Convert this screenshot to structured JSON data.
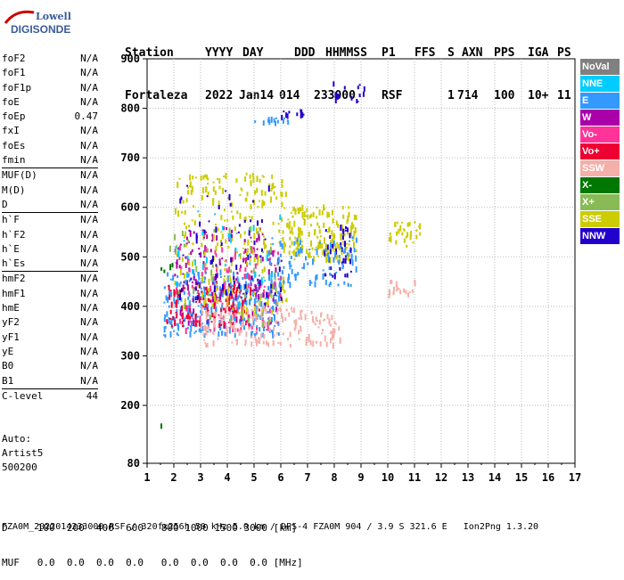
{
  "logo": {
    "line1": "Lowell",
    "line2": "DIGISONDE"
  },
  "header": {
    "labels": [
      "Station",
      "YYYY",
      "DAY",
      "DDD",
      "HHMMSS",
      "P1",
      "FFS",
      "S",
      "AXN",
      "PPS",
      "IGA",
      "PS"
    ],
    "values": [
      "Fortaleza",
      "2022",
      "Jan14",
      "014",
      "233000",
      "RSF",
      "",
      "1",
      "714",
      "100",
      "10+",
      "11"
    ]
  },
  "params_groups": [
    [
      [
        "foF2",
        "N/A"
      ],
      [
        "foF1",
        "N/A"
      ],
      [
        "foF1p",
        "N/A"
      ],
      [
        "foE",
        "N/A"
      ],
      [
        "foEp",
        "0.47"
      ],
      [
        "fxI",
        "N/A"
      ],
      [
        "foEs",
        "N/A"
      ],
      [
        "fmin",
        "N/A"
      ]
    ],
    [
      [
        "MUF(D)",
        "N/A"
      ],
      [
        "M(D)",
        "N/A"
      ],
      [
        "D",
        "N/A"
      ]
    ],
    [
      [
        "h`F",
        "N/A"
      ],
      [
        "h`F2",
        "N/A"
      ],
      [
        "h`E",
        "N/A"
      ],
      [
        "h`Es",
        "N/A"
      ]
    ],
    [
      [
        "hmF2",
        "N/A"
      ],
      [
        "hmF1",
        "N/A"
      ],
      [
        "hmE",
        "N/A"
      ],
      [
        "yF2",
        "N/A"
      ],
      [
        "yF1",
        "N/A"
      ],
      [
        "yE",
        "N/A"
      ],
      [
        "B0",
        "N/A"
      ],
      [
        "B1",
        "N/A"
      ]
    ],
    [
      [
        "C-level",
        "44"
      ]
    ]
  ],
  "auto": {
    "line1": "Auto:",
    "line2": "Artist5",
    "line3": "500200"
  },
  "legend": [
    {
      "name": "NoVal",
      "color": "#808080"
    },
    {
      "name": "NNE",
      "color": "#00ccff"
    },
    {
      "name": "E",
      "color": "#3399ff"
    },
    {
      "name": "W",
      "color": "#aa00aa"
    },
    {
      "name": "Vo-",
      "color": "#ff3399"
    },
    {
      "name": "Vo+",
      "color": "#ee0033"
    },
    {
      "name": "SSW",
      "color": "#f4b0a8"
    },
    {
      "name": "X-",
      "color": "#007700"
    },
    {
      "name": "X+",
      "color": "#88bb55"
    },
    {
      "name": "SSE",
      "color": "#cccc00"
    },
    {
      "name": "NNW",
      "color": "#2200cc"
    }
  ],
  "footer": {
    "line1": "D     100  200  400  600   800 1000 1500 3000 [km]",
    "line2": "MUF   0.0  0.0  0.0  0.0   0.0  0.0  0.0  0.0 [MHz]",
    "line3": "FZA0M_2022014233000.RSF / 320fx256h 50 kHz 5.0 km / DPS-4 FZA0M 904 / 3.9 S 321.6 E   Ion2Png 1.3.20"
  },
  "chart_data": {
    "type": "scatter",
    "xlim": [
      1,
      17
    ],
    "ylim": [
      80,
      900
    ],
    "x_ticks": [
      "1",
      "2",
      "3",
      "4",
      "5",
      "6",
      "7",
      "8",
      "9",
      "10",
      "11",
      "12",
      "13",
      "14",
      "15",
      "16",
      "17"
    ],
    "y_ticks": [
      "80",
      "200",
      "300",
      "400",
      "500",
      "600",
      "700",
      "800",
      "900"
    ],
    "grid": true,
    "clusters": [
      {
        "series": "NNW",
        "color": "#2200cc",
        "x": [
          7.7,
          9.1
        ],
        "y": [
          805,
          855
        ],
        "n": 14
      },
      {
        "series": "E",
        "color": "#3399ff",
        "x": [
          5.0,
          6.3
        ],
        "y": [
          768,
          785
        ],
        "n": 14
      },
      {
        "series": "NNW",
        "color": "#2200cc",
        "x": [
          6.0,
          6.9
        ],
        "y": [
          775,
          795
        ],
        "n": 12
      },
      {
        "series": "E",
        "color": "#3399ff",
        "x": [
          1.6,
          6.0
        ],
        "y": [
          340,
          470
        ],
        "n": 320
      },
      {
        "series": "W",
        "color": "#aa00aa",
        "x": [
          2.0,
          5.8
        ],
        "y": [
          360,
          560
        ],
        "n": 160
      },
      {
        "series": "Vo-",
        "color": "#ff3399",
        "x": [
          2.0,
          6.0
        ],
        "y": [
          350,
          520
        ],
        "n": 110
      },
      {
        "series": "Vo+",
        "color": "#ee0033",
        "x": [
          1.7,
          5.0
        ],
        "y": [
          360,
          440
        ],
        "n": 120
      },
      {
        "series": "SSE",
        "color": "#cccc00",
        "x": [
          2.0,
          6.2
        ],
        "y": [
          380,
          670
        ],
        "n": 260
      },
      {
        "series": "SSE",
        "color": "#cccc00",
        "x": [
          6.2,
          8.8
        ],
        "y": [
          490,
          600
        ],
        "n": 180
      },
      {
        "series": "SSE",
        "color": "#cccc00",
        "x": [
          10.0,
          11.2
        ],
        "y": [
          520,
          570
        ],
        "n": 30
      },
      {
        "series": "NNW",
        "color": "#2200cc",
        "x": [
          2.0,
          6.2
        ],
        "y": [
          400,
          650
        ],
        "n": 70
      },
      {
        "series": "NNW",
        "color": "#2200cc",
        "x": [
          7.6,
          8.6
        ],
        "y": [
          460,
          560
        ],
        "n": 40
      },
      {
        "series": "E",
        "color": "#3399ff",
        "x": [
          5.5,
          8.8
        ],
        "y": [
          440,
          540
        ],
        "n": 90
      },
      {
        "series": "SSW",
        "color": "#f4b0a8",
        "x": [
          3.0,
          8.2
        ],
        "y": [
          320,
          400
        ],
        "n": 170
      },
      {
        "series": "SSW",
        "color": "#f4b0a8",
        "x": [
          10.0,
          11.0
        ],
        "y": [
          420,
          450
        ],
        "n": 20
      },
      {
        "series": "X+",
        "color": "#88bb55",
        "x": [
          1.6,
          6.0
        ],
        "y": [
          360,
          560
        ],
        "n": 40
      },
      {
        "series": "X-",
        "color": "#007700",
        "x": [
          1.5,
          2.0
        ],
        "y": [
          470,
          490
        ],
        "n": 4
      },
      {
        "series": "NNE",
        "color": "#00ccff",
        "x": [
          2.0,
          6.0
        ],
        "y": [
          400,
          600
        ],
        "n": 40
      },
      {
        "series": "X-",
        "color": "#007700",
        "x": [
          1.5,
          1.5
        ],
        "y": [
          155,
          160
        ],
        "n": 2
      }
    ]
  }
}
